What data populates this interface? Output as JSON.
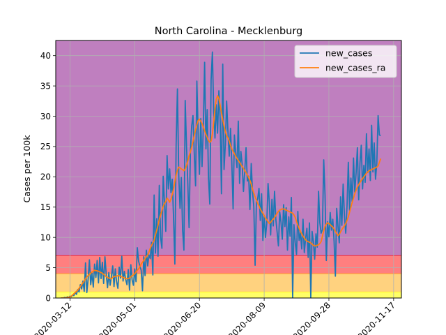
{
  "chart_data": {
    "type": "line",
    "title": "North Carolina - Mecklenburg",
    "xlabel": "",
    "ylabel": "Cases per 100k",
    "ylim": [
      0,
      42.5
    ],
    "yticks": [
      0,
      5,
      10,
      15,
      20,
      25,
      30,
      35,
      40
    ],
    "xticks": [
      "2020-03-12",
      "2020-05-01",
      "2020-06-20",
      "2020-08-09",
      "2020-09-28",
      "2020-11-17"
    ],
    "x_start": "2020-03-01",
    "x_end": "2020-11-23",
    "grid": true,
    "legend_position": "top-right",
    "background_bands": [
      {
        "from": 0,
        "to": 1,
        "color": "#ffff66"
      },
      {
        "from": 1,
        "to": 4,
        "color": "#ffd27f"
      },
      {
        "from": 4,
        "to": 7,
        "color": "#ff7f7f"
      },
      {
        "from": 7,
        "to": 42.5,
        "color": "#bf7fbf"
      }
    ],
    "series": [
      {
        "name": "new_cases",
        "color": "#1f77b4",
        "start_date": "2020-03-05",
        "values": [
          0,
          0,
          0,
          0.1,
          0,
          0.2,
          0.1,
          0.3,
          0.2,
          0.5,
          0.4,
          0.9,
          0.6,
          1.4,
          1.0,
          2.2,
          1.5,
          2.8,
          1.1,
          5.8,
          0.9,
          3.1,
          6.3,
          2.2,
          4.1,
          1.8,
          5.6,
          3.4,
          6.2,
          2.5,
          6.7,
          3.2,
          5.9,
          2.4,
          6.8,
          3.9,
          1.7,
          4.2,
          2.1,
          3.6,
          5.3,
          1.9,
          4.8,
          2.7,
          1.6,
          5.1,
          3.3,
          6.9,
          2.8,
          4.4,
          3.1,
          2.2,
          4.7,
          1.3,
          5.5,
          3.0,
          2.1,
          4.8,
          2.7,
          8.3,
          6.1,
          5.2,
          4.6,
          1.2,
          6.8,
          3.7,
          7.9,
          5.3,
          7.1,
          6.5,
          9.2,
          3.8,
          17.0,
          7.4,
          13.1,
          6.9,
          18.6,
          10.0,
          8.2,
          20.1,
          15.7,
          11.0,
          23.5,
          18.0,
          21.3,
          17.4,
          19.6,
          13.2,
          5.6,
          25.4,
          34.5,
          20.3,
          14.8,
          19.9,
          11.2,
          7.9,
          32.6,
          25.1,
          19.0,
          11.6,
          24.2,
          28.4,
          30.1,
          23.9,
          18.5,
          35.8,
          27.0,
          20.4,
          29.6,
          21.7,
          28.3,
          38.9,
          24.6,
          31.1,
          19.7,
          15.5,
          36.0,
          40.6,
          30.8,
          26.4,
          31.9,
          27.2,
          34.2,
          29.5,
          17.2,
          38.6,
          21.2,
          25.3,
          32.5,
          27.6,
          23.4,
          28.0,
          22.3,
          14.7,
          26.9,
          24.0,
          21.5,
          29.2,
          18.9,
          24.2,
          22.1,
          17.6,
          21.0,
          24.8,
          19.3,
          20.1,
          14.6,
          22.2,
          17.5,
          15.1,
          5.4,
          15.8,
          16.4,
          18.1,
          12.8,
          17.2,
          9.5,
          13.6,
          10.0,
          12.3,
          18.9,
          15.7,
          10.4,
          16.3,
          11.9,
          17.6,
          13.0,
          10.9,
          8.6,
          14.2,
          12.5,
          9.7,
          15.4,
          11.8,
          14.9,
          7.9,
          13.4,
          10.2,
          16.6,
          0.0,
          12.1,
          9.2,
          7.2,
          14.3,
          9.5,
          10.8,
          8.1,
          13.0,
          7.5,
          9.8,
          11.5,
          6.7,
          12.4,
          0.0,
          11.0,
          9.3,
          6.4,
          10.6,
          8.4,
          17.6,
          12.4,
          10.7,
          11.3,
          22.8,
          17.0,
          6.2,
          12.6,
          10.1,
          14.1,
          11.2,
          13.0,
          9.4,
          3.6,
          14.8,
          11.9,
          9.1,
          16.7,
          12.0,
          18.8,
          13.6,
          10.7,
          15.2,
          22.4,
          14.5,
          19.8,
          15.8,
          23.1,
          17.5,
          20.6,
          24.8,
          16.2,
          22.3,
          25.2,
          18.0,
          21.9,
          19.1,
          27.1,
          20.7,
          24.6,
          19.4,
          28.5,
          20.8,
          25.6,
          19.6,
          22.2,
          30.1,
          26.9,
          26.8
        ]
      },
      {
        "name": "new_cases_ra",
        "color": "#ff7f0e",
        "start_date": "2020-03-05",
        "values": [
          0,
          0,
          0,
          0,
          0,
          0.1,
          0.1,
          0.2,
          0.3,
          0.5,
          0.7,
          0.9,
          1.1,
          1.3,
          1.6,
          1.9,
          2.2,
          2.5,
          2.8,
          3.2,
          3.5,
          3.7,
          3.9,
          4.1,
          4.3,
          4.4,
          4.6,
          4.5,
          4.5,
          4.4,
          4.3,
          4.2,
          4.1,
          3.9,
          3.7,
          3.5,
          3.4,
          3.3,
          3.2,
          3.2,
          3.4,
          3.5,
          3.6,
          3.6,
          3.7,
          3.7,
          3.6,
          3.5,
          3.4,
          3.3,
          3.2,
          3.2,
          3.2,
          3.3,
          3.5,
          3.7,
          3.8,
          4.0,
          4.3,
          4.6,
          4.8,
          5.2,
          5.6,
          5.9,
          6.2,
          6.5,
          6.8,
          7.1,
          7.6,
          8.2,
          8.7,
          9.1,
          9.5,
          10.4,
          11.2,
          12.0,
          13.0,
          13.7,
          14.4,
          15.1,
          15.6,
          15.9,
          16.5,
          16.2,
          15.8,
          16.3,
          17.1,
          18.0,
          19.2,
          20.3,
          21.1,
          21.6,
          21.5,
          21.3,
          21.2,
          21.0,
          21.3,
          21.9,
          22.6,
          23.5,
          24.1,
          24.9,
          25.8,
          26.8,
          27.8,
          28.6,
          29.3,
          29.5,
          29.2,
          28.8,
          28.2,
          27.6,
          27.0,
          26.5,
          26.0,
          25.7,
          25.9,
          27.1,
          29.0,
          31.2,
          32.8,
          33.4,
          32.9,
          31.8,
          30.6,
          29.4,
          28.4,
          27.5,
          26.8,
          26.4,
          25.9,
          25.2,
          24.6,
          24.2,
          23.8,
          23.4,
          23.0,
          22.7,
          22.4,
          22.0,
          21.7,
          21.4,
          21.0,
          20.7,
          20.3,
          19.9,
          19.4,
          18.8,
          18.0,
          17.3,
          16.7,
          16.2,
          15.6,
          15.2,
          14.7,
          14.3,
          14.0,
          13.6,
          13.2,
          12.9,
          12.6,
          12.3,
          12.5,
          12.8,
          13.0,
          13.3,
          13.6,
          14.0,
          14.3,
          14.5,
          14.6,
          14.7,
          14.7,
          14.6,
          14.5,
          14.4,
          14.3,
          14.2,
          14.1,
          14.0,
          13.7,
          13.3,
          12.6,
          12.0,
          11.5,
          11.0,
          10.6,
          10.2,
          9.9,
          9.6,
          9.4,
          9.3,
          9.2,
          9.1,
          8.9,
          8.7,
          8.6,
          8.6,
          8.7,
          8.8,
          9.0,
          9.3,
          10.2,
          11.1,
          11.8,
          12.2,
          12.4,
          12.3,
          12.1,
          11.9,
          11.7,
          11.4,
          11.0,
          10.6,
          10.3,
          10.5,
          10.9,
          11.3,
          11.6,
          11.9,
          12.3,
          12.8,
          13.4,
          14.2,
          15.0,
          15.8,
          16.5,
          17.2,
          17.8,
          18.3,
          18.7,
          19.1,
          19.4,
          19.7,
          20.0,
          20.3,
          20.6,
          20.8,
          21.0,
          21.1,
          21.2,
          21.3,
          21.4,
          21.5,
          21.6,
          21.8,
          22.4,
          23.0
        ]
      }
    ]
  }
}
